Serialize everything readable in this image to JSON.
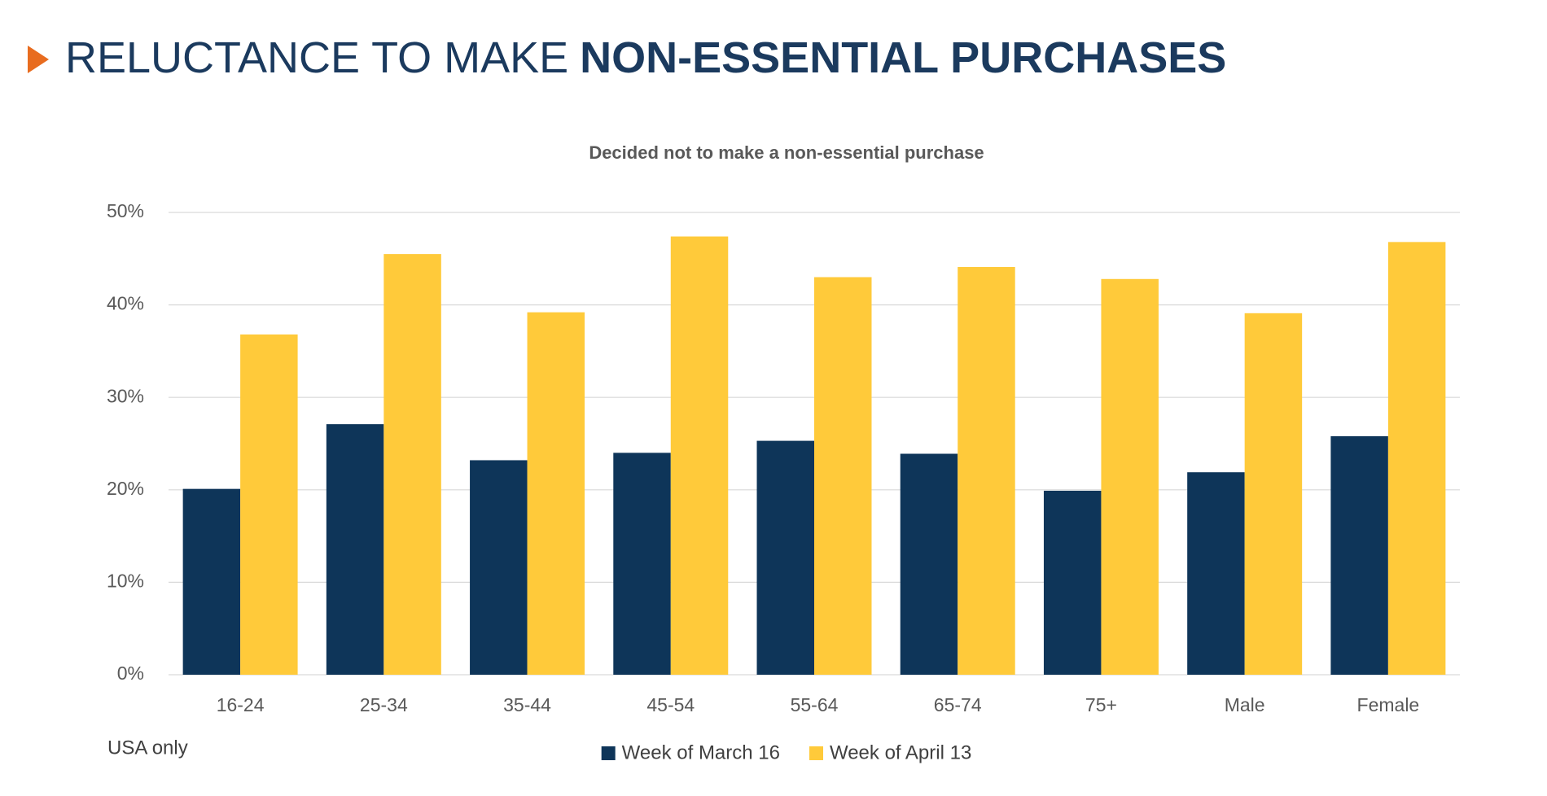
{
  "header": {
    "title_regular": "RELUCTANCE TO MAKE",
    "title_bold": "NON-ESSENTIAL PURCHASES"
  },
  "chart_data": {
    "type": "bar",
    "title": "Decided not to make a non-essential purchase",
    "categories": [
      "16-24",
      "25-34",
      "35-44",
      "45-54",
      "55-64",
      "65-74",
      "75+",
      "Male",
      "Female"
    ],
    "series": [
      {
        "name": "Week of March 16",
        "color": "#0e3559",
        "values": [
          20.1,
          27.1,
          23.2,
          24.0,
          25.3,
          23.9,
          19.9,
          21.9,
          25.8
        ]
      },
      {
        "name": "Week of April 13",
        "color": "#ffca3a",
        "values": [
          36.8,
          45.5,
          39.2,
          47.4,
          43.0,
          44.1,
          42.8,
          39.1,
          46.8
        ]
      }
    ],
    "ylim": [
      0,
      50
    ],
    "yticks": [
      {
        "value": 0,
        "label": "0%"
      },
      {
        "value": 10,
        "label": "10%"
      },
      {
        "value": 20,
        "label": "20%"
      },
      {
        "value": 30,
        "label": "30%"
      },
      {
        "value": 40,
        "label": "40%"
      },
      {
        "value": 50,
        "label": "50%"
      }
    ],
    "grid": true,
    "legend": "bottom",
    "note": "USA only"
  }
}
